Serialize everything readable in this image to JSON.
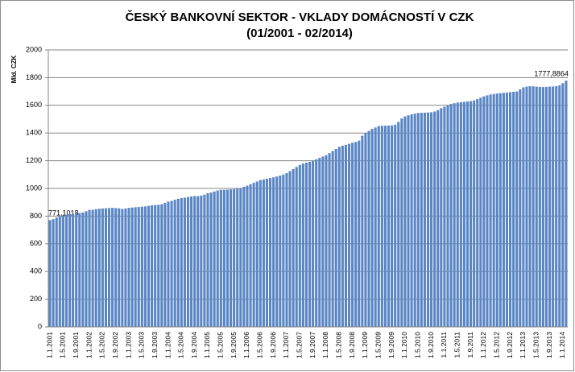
{
  "chart_data": {
    "type": "bar",
    "title": "ČESKÝ BANKOVNÍ SEKTOR - VKLADY DOMÁCNOSTÍ V CZK",
    "subtitle": "(01/2001 - 02/2014)",
    "y_label": "Mld. CZK",
    "color": "#5a86c5",
    "grid": true,
    "ylim": [
      0,
      2000
    ],
    "yticks": [
      0,
      200,
      400,
      600,
      800,
      1000,
      1200,
      1400,
      1600,
      1800,
      2000
    ],
    "categories": [
      "1.1.2001",
      null,
      null,
      null,
      "1.5.2001",
      null,
      null,
      null,
      "1.9.2001",
      null,
      null,
      null,
      "1.1.2002",
      null,
      null,
      null,
      "1.5.2002",
      null,
      null,
      null,
      "1.9.2002",
      null,
      null,
      null,
      "1.1.2003",
      null,
      null,
      null,
      "1.5.2003",
      null,
      null,
      null,
      "1.9.2003",
      null,
      null,
      null,
      "1.1.2004",
      null,
      null,
      null,
      "1.5.2004",
      null,
      null,
      null,
      "1.9.2004",
      null,
      null,
      null,
      "1.1.2005",
      null,
      null,
      null,
      "1.5.2005",
      null,
      null,
      null,
      "1.9.2005",
      null,
      null,
      null,
      "1.1.2006",
      null,
      null,
      null,
      "1.5.2006",
      null,
      null,
      null,
      "1.9.2006",
      null,
      null,
      null,
      "1.1.2007",
      null,
      null,
      null,
      "1.5.2007",
      null,
      null,
      null,
      "1.9.2007",
      null,
      null,
      null,
      "1.1.2008",
      null,
      null,
      null,
      "1.5.2008",
      null,
      null,
      null,
      "1.9.2008",
      null,
      null,
      null,
      "1.1.2009",
      null,
      null,
      null,
      "1.5.2009",
      null,
      null,
      null,
      "1.9.2009",
      null,
      null,
      null,
      "1.1.2010",
      null,
      null,
      null,
      "1.5.2010",
      null,
      null,
      null,
      "1.9.2010",
      null,
      null,
      null,
      "1.1.2011",
      null,
      null,
      null,
      "1.5.2011",
      null,
      null,
      null,
      "1.9.2011",
      null,
      null,
      null,
      "1.1.2012",
      null,
      null,
      null,
      "1.5.2012",
      null,
      null,
      null,
      "1.9.2012",
      null,
      null,
      null,
      "1.1.2013",
      null,
      null,
      null,
      "1.5.2013",
      null,
      null,
      null,
      "1.9.2013",
      null,
      null,
      null,
      "1.1.2014",
      null
    ],
    "values": [
      771.1018,
      778,
      790,
      798,
      805,
      810,
      815,
      818,
      820,
      822,
      826,
      835,
      845,
      846,
      850,
      853,
      855,
      857,
      858,
      860,
      858,
      856,
      852,
      855,
      860,
      862,
      864,
      866,
      868,
      870,
      874,
      878,
      880,
      882,
      886,
      895,
      905,
      910,
      918,
      925,
      930,
      933,
      938,
      942,
      945,
      944,
      948,
      955,
      965,
      970,
      978,
      985,
      990,
      990,
      991,
      993,
      995,
      998,
      1003,
      1012,
      1020,
      1030,
      1040,
      1050,
      1060,
      1065,
      1070,
      1075,
      1080,
      1086,
      1092,
      1100,
      1110,
      1125,
      1140,
      1155,
      1170,
      1180,
      1186,
      1192,
      1200,
      1210,
      1220,
      1230,
      1240,
      1255,
      1270,
      1285,
      1300,
      1308,
      1315,
      1322,
      1330,
      1335,
      1345,
      1380,
      1400,
      1415,
      1430,
      1440,
      1450,
      1452,
      1453,
      1454,
      1455,
      1460,
      1480,
      1505,
      1520,
      1528,
      1535,
      1540,
      1545,
      1546,
      1547,
      1548,
      1550,
      1555,
      1565,
      1580,
      1590,
      1600,
      1610,
      1615,
      1620,
      1622,
      1625,
      1628,
      1630,
      1635,
      1645,
      1655,
      1665,
      1672,
      1678,
      1682,
      1685,
      1688,
      1690,
      1692,
      1695,
      1698,
      1700,
      1715,
      1730,
      1735,
      1738,
      1737,
      1735,
      1733,
      1732,
      1733,
      1735,
      1736,
      1738,
      1745,
      1760,
      1777.8864
    ],
    "value_labels": {
      "0": "771,1018",
      "157": "1777,8864"
    }
  }
}
